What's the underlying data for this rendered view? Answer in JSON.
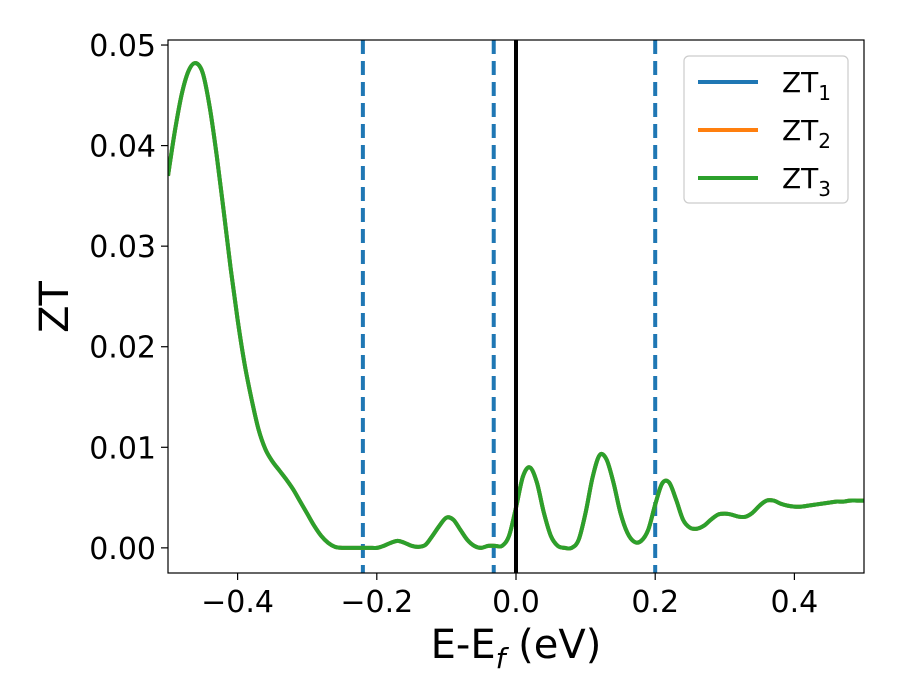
{
  "chart_data": {
    "type": "line",
    "xlabel": "E-E",
    "xlabel_sub": "f",
    "xlabel_unit": " (eV)",
    "ylabel": "ZT",
    "xlim": [
      -0.5,
      0.5
    ],
    "ylim": [
      -0.0025,
      0.0505
    ],
    "x_ticks": [
      -0.4,
      -0.2,
      0.0,
      0.2,
      0.4
    ],
    "x_tick_labels": [
      "−0.4",
      "−0.2",
      "0.0",
      "0.2",
      "0.4"
    ],
    "y_ticks": [
      0.0,
      0.01,
      0.02,
      0.03,
      0.04,
      0.05
    ],
    "y_tick_labels": [
      "0.00",
      "0.01",
      "0.02",
      "0.03",
      "0.04",
      "0.05"
    ],
    "legend_position": "top-right",
    "grid": false,
    "vertical_lines": [
      {
        "x": -0.22,
        "style": "dashed",
        "color": "#1f77b4"
      },
      {
        "x": -0.032,
        "style": "dashed",
        "color": "#1f77b4"
      },
      {
        "x": 0.0,
        "style": "solid",
        "color": "#000000"
      },
      {
        "x": 0.2,
        "style": "dashed",
        "color": "#1f77b4"
      }
    ],
    "x": [
      -0.5,
      -0.49,
      -0.48,
      -0.47,
      -0.46,
      -0.45,
      -0.44,
      -0.43,
      -0.42,
      -0.41,
      -0.4,
      -0.39,
      -0.38,
      -0.37,
      -0.36,
      -0.35,
      -0.34,
      -0.33,
      -0.32,
      -0.31,
      -0.3,
      -0.29,
      -0.28,
      -0.27,
      -0.26,
      -0.25,
      -0.24,
      -0.23,
      -0.22,
      -0.21,
      -0.2,
      -0.19,
      -0.18,
      -0.17,
      -0.16,
      -0.15,
      -0.14,
      -0.13,
      -0.12,
      -0.11,
      -0.1,
      -0.09,
      -0.08,
      -0.07,
      -0.06,
      -0.05,
      -0.04,
      -0.03,
      -0.02,
      -0.01,
      0.0,
      0.01,
      0.02,
      0.03,
      0.04,
      0.05,
      0.06,
      0.07,
      0.08,
      0.09,
      0.1,
      0.11,
      0.12,
      0.13,
      0.14,
      0.15,
      0.16,
      0.17,
      0.18,
      0.19,
      0.2,
      0.21,
      0.22,
      0.23,
      0.24,
      0.25,
      0.26,
      0.27,
      0.28,
      0.29,
      0.3,
      0.31,
      0.32,
      0.33,
      0.34,
      0.35,
      0.36,
      0.37,
      0.38,
      0.39,
      0.4,
      0.41,
      0.42,
      0.43,
      0.44,
      0.45,
      0.46,
      0.47,
      0.48,
      0.49,
      0.5
    ],
    "series": [
      {
        "name": "ZT",
        "name_sub": "1",
        "color": "#1f77b4",
        "values": [
          0.037,
          0.0415,
          0.0452,
          0.0475,
          0.0482,
          0.0472,
          0.0438,
          0.039,
          0.0335,
          0.0278,
          0.0227,
          0.0183,
          0.0148,
          0.0118,
          0.0098,
          0.0086,
          0.0077,
          0.0068,
          0.0058,
          0.0046,
          0.0034,
          0.0022,
          0.0012,
          0.0005,
          0.0001,
          0.0,
          0.0,
          0.0,
          0.0,
          0.0,
          0.0,
          0.0002,
          0.0005,
          0.0007,
          0.0005,
          0.0002,
          0.0001,
          0.0003,
          0.0012,
          0.0022,
          0.003,
          0.0028,
          0.0018,
          0.0008,
          0.0002,
          0.0,
          0.0002,
          0.0002,
          0.0002,
          0.0012,
          0.004,
          0.0071,
          0.008,
          0.0065,
          0.0035,
          0.0012,
          0.0002,
          0.0,
          0.0,
          0.0008,
          0.0035,
          0.007,
          0.0092,
          0.0088,
          0.0065,
          0.0035,
          0.0015,
          0.0006,
          0.0007,
          0.0018,
          0.0043,
          0.0064,
          0.0065,
          0.0048,
          0.0028,
          0.002,
          0.0019,
          0.0022,
          0.0028,
          0.0033,
          0.0034,
          0.0033,
          0.0031,
          0.0031,
          0.0035,
          0.0042,
          0.0047,
          0.0047,
          0.0044,
          0.0042,
          0.0041,
          0.0041,
          0.0042,
          0.0043,
          0.0044,
          0.0045,
          0.0046,
          0.0046,
          0.0047,
          0.0047,
          0.0047
        ]
      },
      {
        "name": "ZT",
        "name_sub": "2",
        "color": "#ff7f0e",
        "values": [
          0.037,
          0.0415,
          0.0452,
          0.0475,
          0.0482,
          0.0472,
          0.0438,
          0.039,
          0.0335,
          0.0278,
          0.0227,
          0.0183,
          0.0148,
          0.0118,
          0.0098,
          0.0086,
          0.0077,
          0.0068,
          0.0058,
          0.0046,
          0.0034,
          0.0022,
          0.0012,
          0.0005,
          0.0001,
          0.0,
          0.0,
          0.0,
          0.0,
          0.0,
          0.0,
          0.0002,
          0.0005,
          0.0007,
          0.0005,
          0.0002,
          0.0001,
          0.0003,
          0.0012,
          0.0022,
          0.003,
          0.0028,
          0.0018,
          0.0008,
          0.0002,
          0.0,
          0.0002,
          0.0002,
          0.0002,
          0.0012,
          0.004,
          0.0071,
          0.008,
          0.0065,
          0.0035,
          0.0012,
          0.0002,
          0.0,
          0.0,
          0.0008,
          0.0035,
          0.007,
          0.0092,
          0.0088,
          0.0065,
          0.0035,
          0.0015,
          0.0006,
          0.0007,
          0.0018,
          0.0043,
          0.0064,
          0.0065,
          0.0048,
          0.0028,
          0.002,
          0.0019,
          0.0022,
          0.0028,
          0.0033,
          0.0034,
          0.0033,
          0.0031,
          0.0031,
          0.0035,
          0.0042,
          0.0047,
          0.0047,
          0.0044,
          0.0042,
          0.0041,
          0.0041,
          0.0042,
          0.0043,
          0.0044,
          0.0045,
          0.0046,
          0.0046,
          0.0047,
          0.0047,
          0.0047
        ]
      },
      {
        "name": "ZT",
        "name_sub": "3",
        "color": "#2ca02c",
        "values": [
          0.037,
          0.0415,
          0.0452,
          0.0475,
          0.0482,
          0.0472,
          0.0438,
          0.039,
          0.0335,
          0.0278,
          0.0227,
          0.0183,
          0.0148,
          0.0118,
          0.0098,
          0.0086,
          0.0077,
          0.0068,
          0.0058,
          0.0046,
          0.0034,
          0.0022,
          0.0012,
          0.0005,
          0.0001,
          0.0,
          0.0,
          0.0,
          0.0,
          0.0,
          0.0,
          0.0002,
          0.0005,
          0.0007,
          0.0005,
          0.0002,
          0.0001,
          0.0003,
          0.0012,
          0.0022,
          0.003,
          0.0028,
          0.0018,
          0.0008,
          0.0002,
          0.0,
          0.0002,
          0.0002,
          0.0002,
          0.0012,
          0.004,
          0.0071,
          0.008,
          0.0065,
          0.0035,
          0.0012,
          0.0002,
          0.0,
          0.0,
          0.0008,
          0.0035,
          0.007,
          0.0092,
          0.0088,
          0.0065,
          0.0035,
          0.0015,
          0.0006,
          0.0007,
          0.0018,
          0.0043,
          0.0064,
          0.0065,
          0.0048,
          0.0028,
          0.002,
          0.0019,
          0.0022,
          0.0028,
          0.0033,
          0.0034,
          0.0033,
          0.0031,
          0.0031,
          0.0035,
          0.0042,
          0.0047,
          0.0047,
          0.0044,
          0.0042,
          0.0041,
          0.0041,
          0.0042,
          0.0043,
          0.0044,
          0.0045,
          0.0046,
          0.0046,
          0.0047,
          0.0047,
          0.0047
        ]
      }
    ]
  }
}
